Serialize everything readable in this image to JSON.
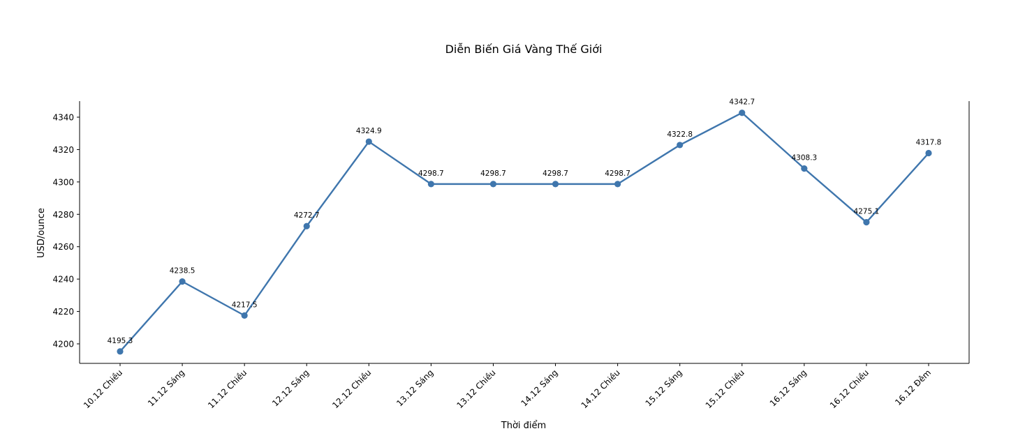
{
  "chart_data": {
    "type": "line",
    "title": "Diễn Biến Giá Vàng Thế Giới",
    "xlabel": "Thời điểm",
    "ylabel": "USD/ounce",
    "categories": [
      "10.12 Chiều",
      "11.12 Sáng",
      "11.12 Chiều",
      "12.12 Sáng",
      "12.12 Chiều",
      "13.12 Sáng",
      "13.12 Chiều",
      "14.12 Sáng",
      "14.12 Chiều",
      "15.12 Sáng",
      "15.12 Chiều",
      "16.12 Sáng",
      "16.12 Chiều",
      "16.12 Đêm"
    ],
    "series": [
      {
        "values": [
          4195.3,
          4238.5,
          4217.5,
          4272.7,
          4324.9,
          4298.7,
          4298.7,
          4298.7,
          4298.7,
          4322.8,
          4342.7,
          4308.3,
          4275.1,
          4317.8
        ],
        "color": "#3f76ad"
      }
    ],
    "data_labels": [
      "4195.3",
      "4238.5",
      "4217.5",
      "4272.7",
      "4324.9",
      "4298.7",
      "4298.7",
      "4298.7",
      "4298.7",
      "4322.8",
      "4342.7",
      "4308.3",
      "4275.1",
      "4317.8"
    ],
    "yticks": [
      "4200",
      "4220",
      "4240",
      "4260",
      "4280",
      "4300",
      "4320",
      "4340"
    ],
    "ylim": [
      4188,
      4352
    ],
    "grid": false,
    "legend": false,
    "spines": [
      "left",
      "bottom",
      "right"
    ]
  }
}
